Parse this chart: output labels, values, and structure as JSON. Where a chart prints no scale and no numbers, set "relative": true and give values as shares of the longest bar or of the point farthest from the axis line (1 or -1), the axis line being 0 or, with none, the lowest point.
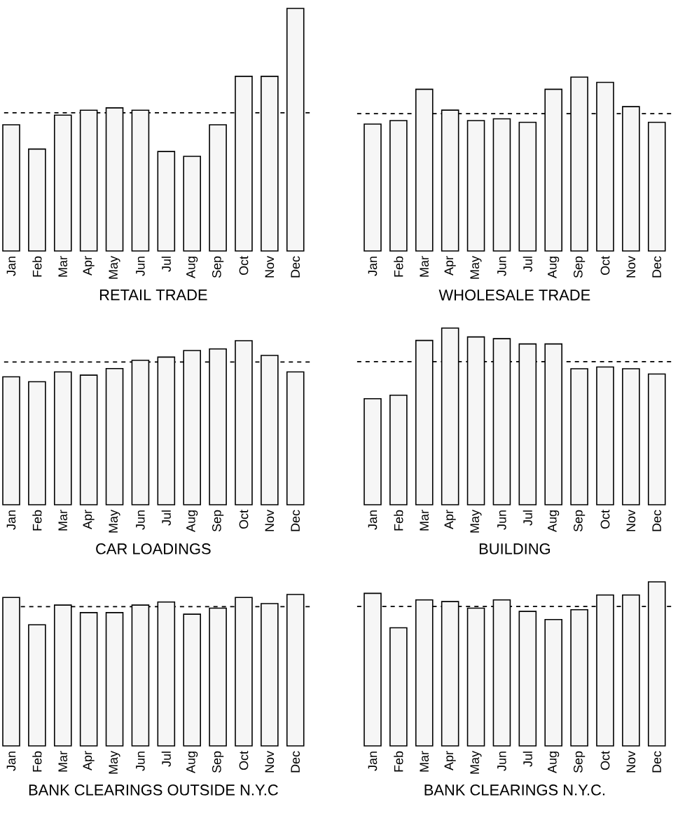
{
  "chart_data": [
    {
      "type": "bar",
      "title": "RETAIL TRADE",
      "categories": [
        "Jan",
        "Feb",
        "Mar",
        "Apr",
        "May",
        "Jun",
        "Jul",
        "Aug",
        "Sep",
        "Oct",
        "Nov",
        "Dec"
      ],
      "values": [
        0.52,
        0.42,
        0.56,
        0.58,
        0.59,
        0.58,
        0.41,
        0.39,
        0.52,
        0.72,
        0.72,
        1
      ],
      "color": "#f6f6f6",
      "relative": true,
      "ref_lines": [
        {
          "axis": "y",
          "value": 0.57,
          "color": "#000000",
          "line_style": "dashed"
        }
      ]
    },
    {
      "type": "bar",
      "title": "WHOLESALE TRADE",
      "categories": [
        "Jan",
        "Feb",
        "Mar",
        "Apr",
        "May",
        "Jun",
        "Jul",
        "Aug",
        "Sep",
        "Oct",
        "Nov",
        "Dec"
      ],
      "values": [
        0.73,
        0.75,
        0.93,
        0.81,
        0.75,
        0.76,
        0.74,
        0.93,
        1,
        0.97,
        0.83,
        0.74
      ],
      "color": "#f6f6f6",
      "relative": true,
      "ref_lines": [
        {
          "axis": "y",
          "value": 0.79,
          "color": "#000000",
          "line_style": "dashed"
        }
      ]
    },
    {
      "type": "bar",
      "title": "CAR LOADINGS",
      "categories": [
        "Jan",
        "Feb",
        "Mar",
        "Apr",
        "May",
        "Jun",
        "Jul",
        "Aug",
        "Sep",
        "Oct",
        "Nov",
        "Dec"
      ],
      "values": [
        0.78,
        0.75,
        0.81,
        0.79,
        0.83,
        0.88,
        0.9,
        0.94,
        0.95,
        1,
        0.91,
        0.81
      ],
      "color": "#f6f6f6",
      "relative": true,
      "ref_lines": [
        {
          "axis": "y",
          "value": 0.87,
          "color": "#000000",
          "line_style": "dashed"
        }
      ]
    },
    {
      "type": "bar",
      "title": "BUILDING",
      "categories": [
        "Jan",
        "Feb",
        "Mar",
        "Apr",
        "May",
        "Jun",
        "Jul",
        "Aug",
        "Sep",
        "Oct",
        "Nov",
        "Dec"
      ],
      "values": [
        0.6,
        0.62,
        0.93,
        1,
        0.95,
        0.94,
        0.91,
        0.91,
        0.77,
        0.78,
        0.77,
        0.74
      ],
      "color": "#f6f6f6",
      "relative": true,
      "ref_lines": [
        {
          "axis": "y",
          "value": 0.81,
          "color": "#000000",
          "line_style": "dashed"
        }
      ]
    },
    {
      "type": "bar",
      "title": "BANK CLEARINGS OUTSIDE N.Y.C",
      "categories": [
        "Jan",
        "Feb",
        "Mar",
        "Apr",
        "May",
        "Jun",
        "Jul",
        "Aug",
        "Sep",
        "Oct",
        "Nov",
        "Dec"
      ],
      "values": [
        0.98,
        0.8,
        0.93,
        0.88,
        0.88,
        0.93,
        0.95,
        0.87,
        0.91,
        0.98,
        0.94,
        1
      ],
      "color": "#f6f6f6",
      "relative": true,
      "ref_lines": [
        {
          "axis": "y",
          "value": 0.92,
          "color": "#000000",
          "line_style": "dashed"
        }
      ]
    },
    {
      "type": "bar",
      "title": "BANK CLEARINGS N.Y.C.",
      "categories": [
        "Jan",
        "Feb",
        "Mar",
        "Apr",
        "May",
        "Jun",
        "Jul",
        "Aug",
        "Sep",
        "Oct",
        "Nov",
        "Dec"
      ],
      "values": [
        0.93,
        0.72,
        0.89,
        0.88,
        0.84,
        0.89,
        0.82,
        0.77,
        0.83,
        0.92,
        0.92,
        1
      ],
      "color": "#f6f6f6",
      "relative": true,
      "ref_lines": [
        {
          "axis": "y",
          "value": 0.85,
          "color": "#000000",
          "line_style": "dashed"
        }
      ]
    }
  ]
}
